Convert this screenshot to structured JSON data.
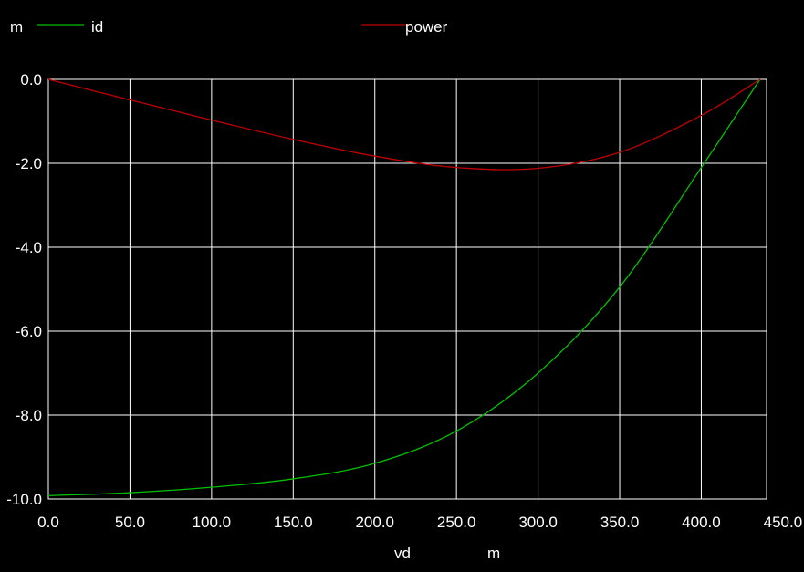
{
  "chart_data": {
    "type": "line",
    "unit_label_top": "m",
    "xlabel": "vd",
    "x_unit": "m",
    "xlim": [
      0,
      440
    ],
    "ylim": [
      -10,
      0
    ],
    "x_ticks": [
      "0.0",
      "50.0",
      "100.0",
      "150.0",
      "200.0",
      "250.0",
      "300.0",
      "350.0",
      "400.0",
      "450.0"
    ],
    "y_ticks": [
      "0.0",
      "-2.0",
      "-4.0",
      "-6.0",
      "-8.0",
      "-10.0"
    ],
    "grid": true,
    "legend_position": "top",
    "series": [
      {
        "name": "id",
        "color": "#00c000",
        "x": [
          0,
          50,
          100,
          150,
          200,
          250,
          300,
          350,
          400,
          436
        ],
        "y": [
          -9.92,
          -9.85,
          -9.72,
          -9.52,
          -9.15,
          -8.38,
          -7.0,
          -4.95,
          -2.1,
          0.0
        ]
      },
      {
        "name": "power",
        "color": "#c00000",
        "x": [
          0,
          50,
          100,
          150,
          200,
          250,
          300,
          350,
          400,
          436
        ],
        "y": [
          0.0,
          -0.49,
          -0.97,
          -1.43,
          -1.83,
          -2.1,
          -2.12,
          -1.74,
          -0.86,
          0.0
        ]
      }
    ]
  }
}
